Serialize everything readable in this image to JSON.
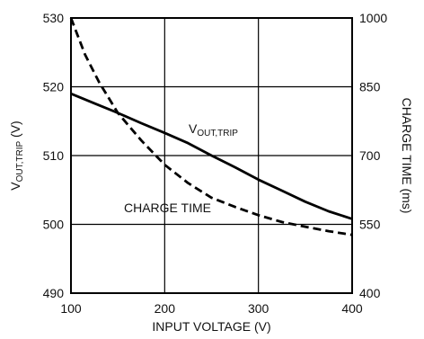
{
  "chart_data": {
    "type": "line",
    "xlabel": "INPUT VOLTAGE (V)",
    "ylabel_left": {
      "main": "V",
      "sub": "OUT,TRIP",
      "unit": " (V)"
    },
    "ylabel_right": "CHARGE TIME (ms)",
    "xlim": [
      100,
      400
    ],
    "ylim_left": [
      490,
      530
    ],
    "ylim_right": [
      400,
      1000
    ],
    "x_ticks": [
      "100",
      "200",
      "300",
      "400"
    ],
    "y_left_ticks": [
      "490",
      "500",
      "510",
      "520",
      "530"
    ],
    "y_right_ticks": [
      "400",
      "550",
      "700",
      "850",
      "1000"
    ],
    "grid": true,
    "series": [
      {
        "axis": "left",
        "style": "solid",
        "label": {
          "main": "V",
          "sub": "OUT,TRIP"
        },
        "x": [
          100,
          125,
          150,
          175,
          200,
          225,
          250,
          275,
          300,
          325,
          350,
          375,
          400
        ],
        "y": [
          519,
          517.6,
          516.2,
          514.7,
          513.3,
          511.8,
          510,
          508.3,
          506.5,
          504.9,
          503.3,
          501.9,
          500.8
        ]
      },
      {
        "axis": "right",
        "style": "dashed",
        "label": {
          "main": "CHARGE TIME"
        },
        "x": [
          100,
          115,
          130,
          150,
          175,
          200,
          225,
          250,
          275,
          300,
          325,
          350,
          375,
          400
        ],
        "y": [
          1000,
          920,
          860,
          793,
          733,
          680,
          640,
          608,
          588,
          570,
          555,
          545,
          535,
          527
        ]
      }
    ]
  }
}
